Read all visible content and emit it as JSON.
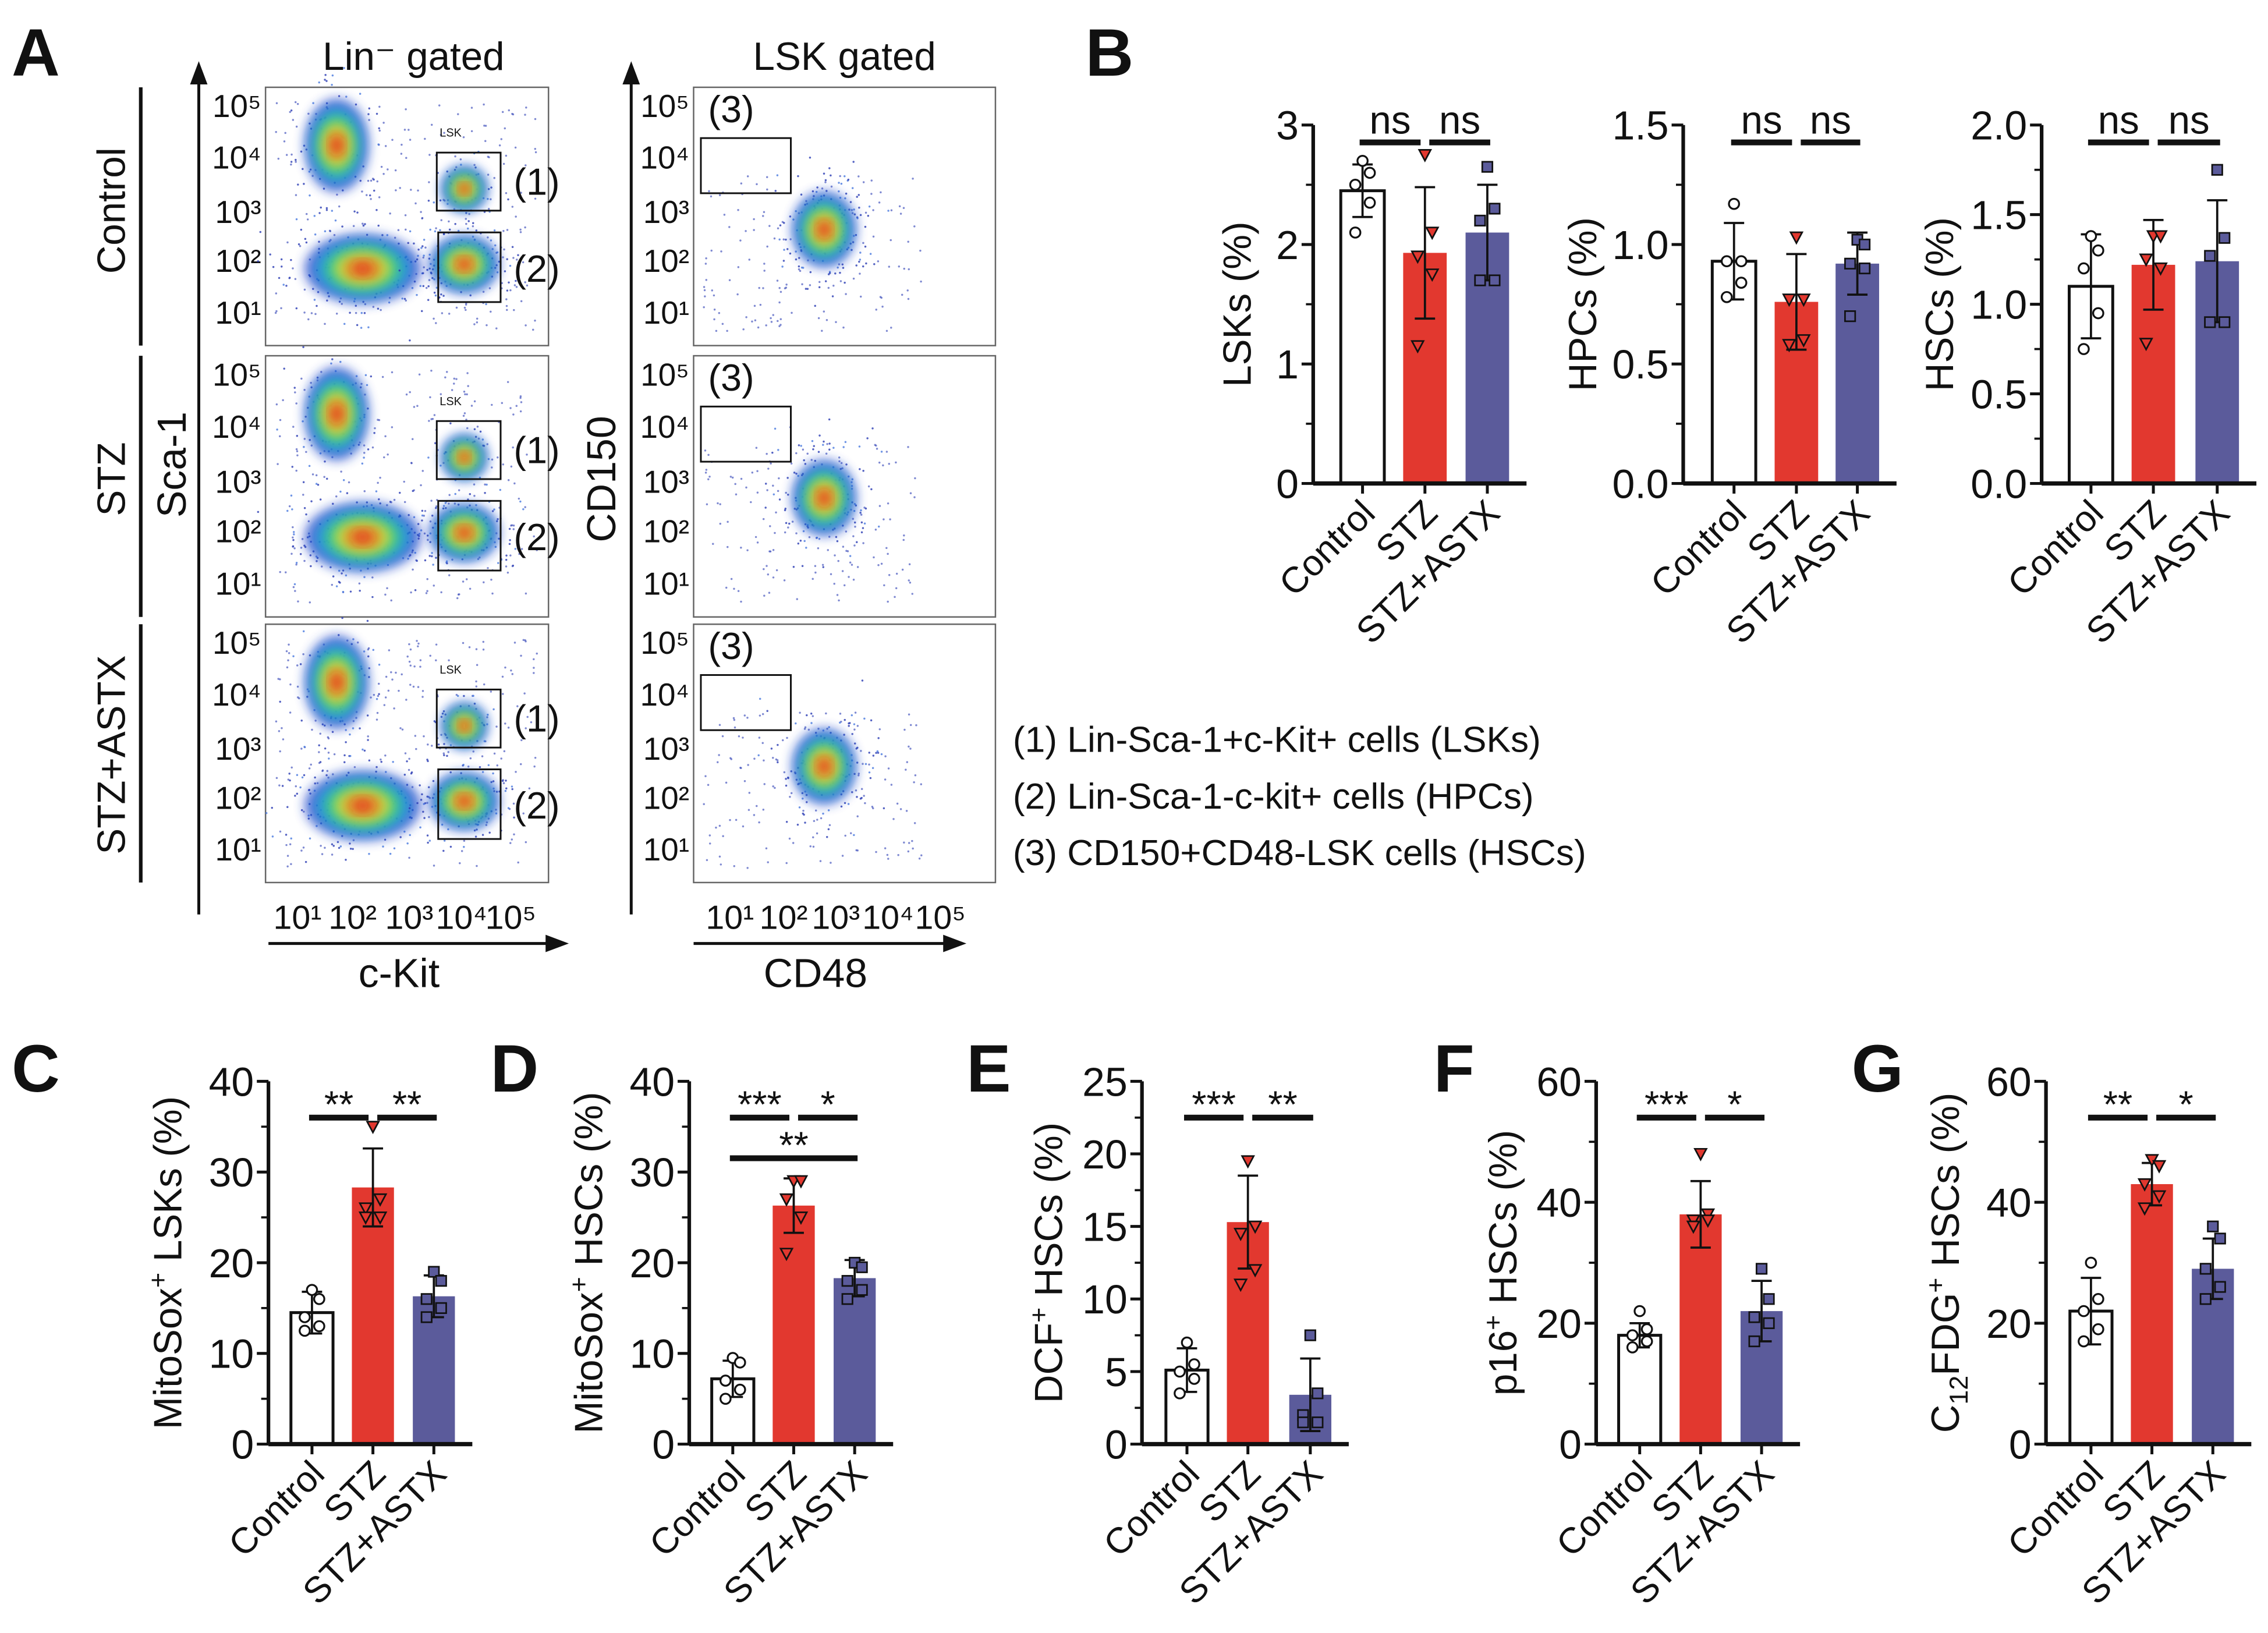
{
  "panel_letters": {
    "A": "A",
    "B": "B",
    "C": "C",
    "D": "D",
    "E": "E",
    "F": "F",
    "G": "G"
  },
  "flow": {
    "titles": [
      "Lin⁻ gated",
      "LSK gated"
    ],
    "row_labels": [
      "Control",
      "STZ",
      "STZ+ASTX"
    ],
    "left_y_axis": "Sca-1",
    "right_y_axis": "CD150",
    "left_x_axis": "c-Kit",
    "right_x_axis": "CD48",
    "y_ticks": [
      "10⁵",
      "10⁴",
      "10³",
      "10²",
      "10¹"
    ],
    "x_ticks": [
      "10¹",
      "10²",
      "10³",
      "10⁴",
      "10⁵"
    ],
    "gate_lsk_label": "LSK",
    "gate_labels": [
      "(1)",
      "(2)",
      "(3)"
    ],
    "legend": [
      "(1) Lin-Sca-1+c-Kit+ cells (LSKs)",
      "(2) Lin-Sca-1-c-kit+ cells (HPCs)",
      "(3) CD150+CD48-LSK cells (HSCs)"
    ]
  },
  "colors": {
    "control": "#ffffff",
    "stz": "#e2382f",
    "astx": "#5b5b9b",
    "axis": "#111111"
  },
  "chart_data": [
    {
      "id": "B1",
      "type": "bar",
      "ylabel": "LSKs (%)",
      "categories": [
        "Control",
        "STZ",
        "STZ+ASTX"
      ],
      "ylim": [
        0,
        3
      ],
      "ticks": [
        "0",
        "1",
        "2",
        "3"
      ],
      "tick_values": [
        0,
        1,
        2,
        3
      ],
      "minor": 0.5,
      "means": [
        2.45,
        1.93,
        2.1
      ],
      "sd": [
        0.22,
        0.55,
        0.4
      ],
      "points": [
        [
          2.7,
          2.6,
          2.5,
          2.35,
          2.1
        ],
        [
          2.75,
          2.1,
          1.9,
          1.75,
          1.15
        ],
        [
          2.65,
          2.3,
          2.2,
          1.7,
          1.7
        ]
      ],
      "significance": [
        {
          "from": 0,
          "to": 1,
          "label": "ns",
          "level": 0
        },
        {
          "from": 1,
          "to": 2,
          "label": "ns",
          "level": 0
        }
      ]
    },
    {
      "id": "B2",
      "type": "bar",
      "ylabel": "HPCs (%)",
      "categories": [
        "Control",
        "STZ",
        "STZ+ASTX"
      ],
      "ylim": [
        0,
        1.5
      ],
      "ticks": [
        "0.0",
        "0.5",
        "1.0",
        "1.5"
      ],
      "tick_values": [
        0,
        0.5,
        1.0,
        1.5
      ],
      "minor": 0.25,
      "means": [
        0.93,
        0.76,
        0.92
      ],
      "sd": [
        0.16,
        0.2,
        0.13
      ],
      "points": [
        [
          1.17,
          0.93,
          0.93,
          0.84,
          0.78
        ],
        [
          1.03,
          0.77,
          0.77,
          0.6,
          0.58
        ],
        [
          1.02,
          1.0,
          0.92,
          0.9,
          0.7
        ]
      ],
      "significance": [
        {
          "from": 0,
          "to": 1,
          "label": "ns",
          "level": 0
        },
        {
          "from": 1,
          "to": 2,
          "label": "ns",
          "level": 0
        }
      ]
    },
    {
      "id": "B3",
      "type": "bar",
      "ylabel": "HSCs (%)",
      "categories": [
        "Control",
        "STZ",
        "STZ+ASTX"
      ],
      "ylim": [
        0,
        2
      ],
      "ticks": [
        "0.0",
        "0.5",
        "1.0",
        "1.5",
        "2.0"
      ],
      "tick_values": [
        0,
        0.5,
        1.0,
        1.5,
        2.0
      ],
      "minor": 0.25,
      "means": [
        1.1,
        1.22,
        1.24
      ],
      "sd": [
        0.29,
        0.25,
        0.34
      ],
      "points": [
        [
          1.38,
          1.3,
          1.2,
          0.95,
          0.75
        ],
        [
          1.38,
          1.38,
          1.25,
          1.2,
          0.78
        ],
        [
          1.75,
          1.37,
          1.27,
          0.9,
          0.9
        ]
      ],
      "significance": [
        {
          "from": 0,
          "to": 1,
          "label": "ns",
          "level": 0
        },
        {
          "from": 1,
          "to": 2,
          "label": "ns",
          "level": 0
        }
      ]
    },
    {
      "id": "C",
      "type": "bar",
      "ylabel": "MitoSox",
      "ylabel_sup": "+",
      "ylabel_rest": " LSKs (%)",
      "categories": [
        "Control",
        "STZ",
        "STZ+ASTX"
      ],
      "ylim": [
        0,
        40
      ],
      "ticks": [
        "0",
        "10",
        "20",
        "30",
        "40"
      ],
      "tick_values": [
        0,
        10,
        20,
        30,
        40
      ],
      "minor": 5,
      "means": [
        14.5,
        28.3,
        16.3
      ],
      "sd": [
        2.3,
        4.3,
        2.3
      ],
      "points": [
        [
          17,
          16,
          14,
          13,
          12.5
        ],
        [
          35,
          27,
          26,
          25,
          25
        ],
        [
          19,
          18,
          16,
          15,
          14
        ]
      ],
      "significance": [
        {
          "from": 0,
          "to": 1,
          "label": "**",
          "level": 0
        },
        {
          "from": 1,
          "to": 2,
          "label": "**",
          "level": 0
        }
      ]
    },
    {
      "id": "D",
      "type": "bar",
      "ylabel": "MitoSox",
      "ylabel_sup": "+",
      "ylabel_rest": " HSCs (%)",
      "categories": [
        "Control",
        "STZ",
        "STZ+ASTX"
      ],
      "ylim": [
        0,
        40
      ],
      "ticks": [
        "0",
        "10",
        "20",
        "30",
        "40"
      ],
      "tick_values": [
        0,
        10,
        20,
        30,
        40
      ],
      "minor": 5,
      "means": [
        7.2,
        26.3,
        18.3
      ],
      "sd": [
        2.0,
        3.0,
        2.0
      ],
      "points": [
        [
          9.5,
          9,
          7,
          6,
          5
        ],
        [
          29,
          29,
          27,
          25,
          21
        ],
        [
          20,
          19.5,
          18,
          17,
          16
        ]
      ],
      "significance": [
        {
          "from": 0,
          "to": 1,
          "label": "***",
          "level": 0
        },
        {
          "from": 1,
          "to": 2,
          "label": "*",
          "level": 0
        },
        {
          "from": 0,
          "to": 2,
          "label": "**",
          "level": 1
        }
      ]
    },
    {
      "id": "E",
      "type": "bar",
      "ylabel": "DCF",
      "ylabel_sup": "+",
      "ylabel_rest": " HSCs (%)",
      "categories": [
        "Control",
        "STZ",
        "STZ+ASTX"
      ],
      "ylim": [
        0,
        25
      ],
      "ticks": [
        "0",
        "5",
        "10",
        "15",
        "20",
        "25"
      ],
      "tick_values": [
        0,
        5,
        10,
        15,
        20,
        25
      ],
      "minor": 2.5,
      "means": [
        5.1,
        15.3,
        3.4
      ],
      "sd": [
        1.5,
        3.2,
        2.5
      ],
      "points": [
        [
          7,
          5.5,
          5,
          4.5,
          3.5
        ],
        [
          19.5,
          15,
          14.5,
          12,
          11
        ],
        [
          7.5,
          3.5,
          2,
          1.5,
          1.5
        ]
      ],
      "significance": [
        {
          "from": 0,
          "to": 1,
          "label": "***",
          "level": 0
        },
        {
          "from": 1,
          "to": 2,
          "label": "**",
          "level": 0
        }
      ]
    },
    {
      "id": "F",
      "type": "bar",
      "ylabel": "p16",
      "ylabel_sup": "+",
      "ylabel_rest": " HSCs (%)",
      "categories": [
        "Control",
        "STZ",
        "STZ+ASTX"
      ],
      "ylim": [
        0,
        60
      ],
      "ticks": [
        "0",
        "20",
        "40",
        "60"
      ],
      "tick_values": [
        0,
        20,
        40,
        60
      ],
      "minor": 10,
      "means": [
        18,
        38,
        22
      ],
      "sd": [
        2,
        5.5,
        5
      ],
      "points": [
        [
          22,
          19,
          18,
          17,
          16
        ],
        [
          48,
          38,
          37,
          37,
          36
        ],
        [
          29,
          24,
          21,
          20,
          17
        ]
      ],
      "significance": [
        {
          "from": 0,
          "to": 1,
          "label": "***",
          "level": 0
        },
        {
          "from": 1,
          "to": 2,
          "label": "*",
          "level": 0
        }
      ]
    },
    {
      "id": "G",
      "type": "bar",
      "ylabel": "C",
      "ylabel_sub": "12",
      "ylabel_mid": "FDG",
      "ylabel_sup": "+",
      "ylabel_rest": " HSCs (%)",
      "categories": [
        "Control",
        "STZ",
        "STZ+ASTX"
      ],
      "ylim": [
        0,
        60
      ],
      "ticks": [
        "0",
        "20",
        "40",
        "60"
      ],
      "tick_values": [
        0,
        20,
        40,
        60
      ],
      "minor": 10,
      "means": [
        22,
        43,
        29
      ],
      "sd": [
        5.5,
        3.5,
        5
      ],
      "points": [
        [
          30,
          24,
          22,
          19,
          17
        ],
        [
          47,
          46,
          43,
          41,
          39
        ],
        [
          36,
          34,
          29,
          26,
          24
        ]
      ],
      "significance": [
        {
          "from": 0,
          "to": 1,
          "label": "**",
          "level": 0
        },
        {
          "from": 1,
          "to": 2,
          "label": "*",
          "level": 0
        }
      ]
    }
  ]
}
